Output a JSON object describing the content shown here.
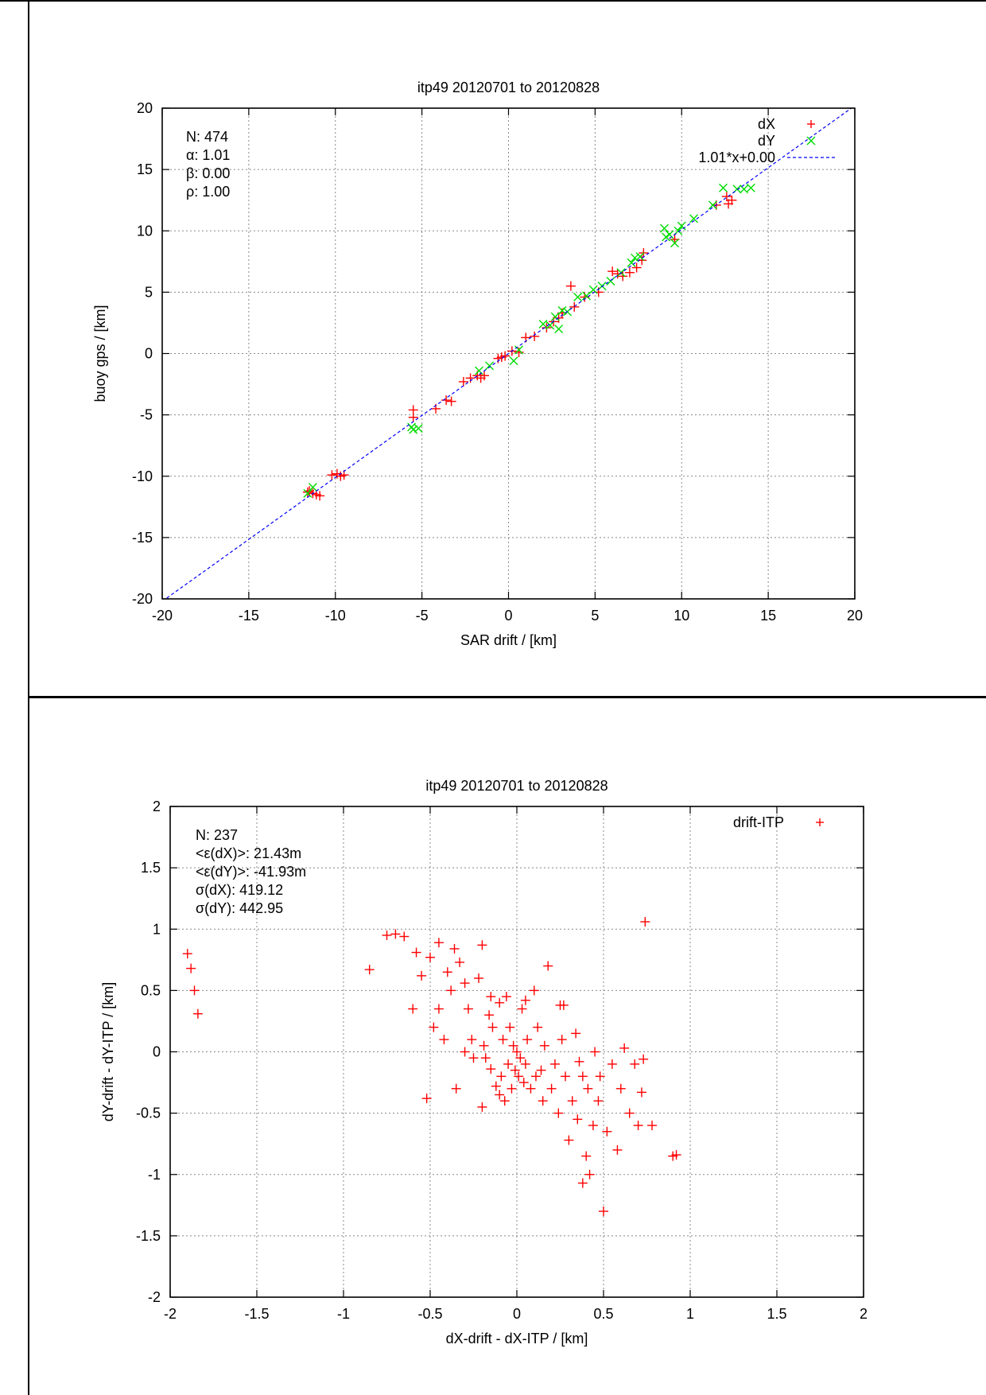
{
  "chart_data": [
    {
      "type": "scatter",
      "title": "itp49 20120701 to 20120828",
      "xlabel": "SAR drift / [km]",
      "ylabel": "buoy gps / [km]",
      "xlim": [
        -20,
        20
      ],
      "ylim": [
        -20,
        20
      ],
      "xticks": [
        -20,
        -15,
        -10,
        -5,
        0,
        5,
        10,
        15,
        20
      ],
      "yticks": [
        -20,
        -15,
        -10,
        -5,
        0,
        5,
        10,
        15,
        20
      ],
      "grid": true,
      "legend_position": "top-right",
      "stats": [
        "N: 474",
        "α: 1.01",
        "β: 0.00",
        "ρ: 1.00"
      ],
      "series": [
        {
          "name": "dX",
          "marker": "+",
          "color": "#ff0000",
          "points": [
            [
              -11.6,
              -11.3
            ],
            [
              -11.3,
              -11.4
            ],
            [
              -11.1,
              -11.5
            ],
            [
              -10.9,
              -11.6
            ],
            [
              -11.5,
              -11.2
            ],
            [
              -10.2,
              -9.9
            ],
            [
              -9.9,
              -9.8
            ],
            [
              -9.5,
              -9.9
            ],
            [
              -9.7,
              -10.0
            ],
            [
              -5.5,
              -4.6
            ],
            [
              -5.5,
              -5.2
            ],
            [
              -4.2,
              -4.5
            ],
            [
              -3.6,
              -3.8
            ],
            [
              -3.3,
              -3.9
            ],
            [
              -2.6,
              -2.3
            ],
            [
              -2.2,
              -2.0
            ],
            [
              -1.8,
              -1.8
            ],
            [
              -1.6,
              -2.0
            ],
            [
              -1.4,
              -1.8
            ],
            [
              -0.6,
              -0.4
            ],
            [
              -0.4,
              -0.3
            ],
            [
              -0.2,
              -0.2
            ],
            [
              0.2,
              0.2
            ],
            [
              0.6,
              0.1
            ],
            [
              1.0,
              1.3
            ],
            [
              1.5,
              1.4
            ],
            [
              2.2,
              2.1
            ],
            [
              2.6,
              2.6
            ],
            [
              2.9,
              2.9
            ],
            [
              3.1,
              3.3
            ],
            [
              3.6,
              5.5
            ],
            [
              3.8,
              3.8
            ],
            [
              4.4,
              4.6
            ],
            [
              5.2,
              5.0
            ],
            [
              6.0,
              6.7
            ],
            [
              6.3,
              6.5
            ],
            [
              6.6,
              6.3
            ],
            [
              7.0,
              6.6
            ],
            [
              7.4,
              7.0
            ],
            [
              7.8,
              8.2
            ],
            [
              7.7,
              7.6
            ],
            [
              9.6,
              9.3
            ],
            [
              12.0,
              12.1
            ],
            [
              12.6,
              12.8
            ],
            [
              12.7,
              12.2
            ],
            [
              12.9,
              12.5
            ]
          ]
        },
        {
          "name": "dY",
          "marker": "x",
          "color": "#00dd00",
          "points": [
            [
              -11.3,
              -10.9
            ],
            [
              -11.6,
              -11.4
            ],
            [
              -5.6,
              -6.0
            ],
            [
              -5.2,
              -6.1
            ],
            [
              -5.5,
              -6.2
            ],
            [
              -1.7,
              -1.4
            ],
            [
              -1.1,
              -1.0
            ],
            [
              0.3,
              -0.6
            ],
            [
              0.6,
              0.3
            ],
            [
              2.0,
              2.4
            ],
            [
              2.4,
              2.3
            ],
            [
              2.7,
              3.0
            ],
            [
              2.9,
              2.0
            ],
            [
              3.1,
              3.5
            ],
            [
              3.4,
              3.4
            ],
            [
              4.0,
              4.6
            ],
            [
              4.5,
              4.7
            ],
            [
              4.9,
              5.2
            ],
            [
              5.4,
              5.5
            ],
            [
              5.9,
              5.9
            ],
            [
              6.5,
              6.6
            ],
            [
              7.1,
              7.4
            ],
            [
              7.3,
              7.8
            ],
            [
              7.6,
              7.9
            ],
            [
              9.0,
              10.2
            ],
            [
              9.1,
              9.5
            ],
            [
              9.3,
              9.7
            ],
            [
              9.6,
              9.0
            ],
            [
              9.8,
              10.0
            ],
            [
              10.0,
              10.4
            ],
            [
              10.7,
              11.0
            ],
            [
              11.8,
              12.1
            ],
            [
              12.4,
              13.5
            ],
            [
              13.2,
              13.4
            ],
            [
              13.6,
              13.4
            ],
            [
              14.0,
              13.5
            ]
          ]
        },
        {
          "name": "1.01*x+0.00",
          "type": "line",
          "color": "#0000ff",
          "dash": true,
          "slope": 1.01,
          "intercept": 0.0
        }
      ]
    },
    {
      "type": "scatter",
      "title": "itp49 20120701 to 20120828",
      "xlabel": "dX-drift - dX-ITP / [km]",
      "ylabel": "dY-drift - dY-ITP / [km]",
      "xlim": [
        -2,
        2
      ],
      "ylim": [
        -2,
        2
      ],
      "xticks": [
        -2,
        -1.5,
        -1,
        -0.5,
        0,
        0.5,
        1,
        1.5,
        2
      ],
      "yticks": [
        -2,
        -1.5,
        -1,
        -0.5,
        0,
        0.5,
        1,
        1.5,
        2
      ],
      "grid": true,
      "legend_position": "top-right",
      "stats": [
        "N: 237",
        "<ε(dX)>:  21.43m",
        "<ε(dY)>: -41.93m",
        "σ(dX):  419.12",
        "σ(dY):  442.95"
      ],
      "series": [
        {
          "name": "drift-ITP",
          "marker": "+",
          "color": "#ff0000",
          "points": [
            [
              -1.9,
              0.8
            ],
            [
              -1.88,
              0.68
            ],
            [
              -1.86,
              0.5
            ],
            [
              -1.84,
              0.31
            ],
            [
              -0.85,
              0.67
            ],
            [
              -0.75,
              0.95
            ],
            [
              -0.7,
              0.96
            ],
            [
              -0.65,
              0.94
            ],
            [
              -0.6,
              0.35
            ],
            [
              -0.58,
              0.81
            ],
            [
              -0.55,
              0.62
            ],
            [
              -0.52,
              -0.38
            ],
            [
              -0.5,
              0.77
            ],
            [
              -0.48,
              0.2
            ],
            [
              -0.45,
              0.89
            ],
            [
              -0.42,
              0.1
            ],
            [
              -0.4,
              0.65
            ],
            [
              -0.38,
              0.5
            ],
            [
              -0.36,
              0.84
            ],
            [
              -0.35,
              -0.3
            ],
            [
              -0.33,
              0.73
            ],
            [
              -0.3,
              0.56
            ],
            [
              -0.28,
              0.35
            ],
            [
              -0.26,
              0.1
            ],
            [
              -0.25,
              -0.05
            ],
            [
              -0.22,
              0.6
            ],
            [
              -0.2,
              0.87
            ],
            [
              -0.19,
              0.05
            ],
            [
              -0.18,
              -0.05
            ],
            [
              -0.16,
              0.3
            ],
            [
              -0.15,
              -0.14
            ],
            [
              -0.14,
              0.2
            ],
            [
              -0.12,
              -0.28
            ],
            [
              -0.1,
              0.4
            ],
            [
              -0.09,
              -0.2
            ],
            [
              -0.08,
              0.1
            ],
            [
              -0.07,
              -0.4
            ],
            [
              -0.06,
              0.45
            ],
            [
              -0.05,
              -0.1
            ],
            [
              -0.04,
              0.2
            ],
            [
              -0.03,
              -0.3
            ],
            [
              -0.02,
              0.05
            ],
            [
              -0.01,
              -0.15
            ],
            [
              0.0,
              0.0
            ],
            [
              0.01,
              -0.2
            ],
            [
              0.02,
              -0.05
            ],
            [
              0.03,
              0.35
            ],
            [
              0.04,
              -0.25
            ],
            [
              0.05,
              -0.1
            ],
            [
              0.06,
              0.1
            ],
            [
              0.08,
              -0.3
            ],
            [
              0.1,
              0.5
            ],
            [
              0.11,
              -0.2
            ],
            [
              0.12,
              0.2
            ],
            [
              0.14,
              -0.15
            ],
            [
              0.16,
              0.05
            ],
            [
              0.18,
              0.7
            ],
            [
              0.2,
              -0.3
            ],
            [
              0.22,
              -0.1
            ],
            [
              0.24,
              -0.5
            ],
            [
              0.25,
              0.38
            ],
            [
              0.26,
              0.1
            ],
            [
              0.28,
              -0.2
            ],
            [
              0.3,
              -0.72
            ],
            [
              0.32,
              -0.4
            ],
            [
              0.34,
              0.15
            ],
            [
              0.35,
              -0.55
            ],
            [
              0.36,
              -0.08
            ],
            [
              0.38,
              -1.07
            ],
            [
              0.4,
              -0.85
            ],
            [
              0.41,
              -0.3
            ],
            [
              0.42,
              -1.0
            ],
            [
              0.44,
              -0.6
            ],
            [
              0.45,
              0.0
            ],
            [
              0.47,
              -0.4
            ],
            [
              0.48,
              -0.2
            ],
            [
              0.5,
              -1.3
            ],
            [
              0.52,
              -0.65
            ],
            [
              0.55,
              -0.1
            ],
            [
              0.58,
              -0.8
            ],
            [
              0.6,
              -0.3
            ],
            [
              0.62,
              0.03
            ],
            [
              0.65,
              -0.5
            ],
            [
              0.68,
              -0.1
            ],
            [
              0.7,
              -0.6
            ],
            [
              0.72,
              -0.33
            ],
            [
              0.73,
              -0.06
            ],
            [
              0.74,
              1.06
            ],
            [
              0.78,
              -0.6
            ],
            [
              0.9,
              -0.85
            ],
            [
              0.92,
              -0.84
            ],
            [
              -0.15,
              0.45
            ],
            [
              0.05,
              0.42
            ],
            [
              -0.3,
              0.0
            ],
            [
              0.15,
              -0.4
            ],
            [
              -0.1,
              -0.35
            ],
            [
              0.27,
              0.38
            ],
            [
              -0.45,
              0.35
            ],
            [
              0.38,
              -0.2
            ],
            [
              -0.2,
              -0.45
            ]
          ]
        }
      ]
    }
  ]
}
